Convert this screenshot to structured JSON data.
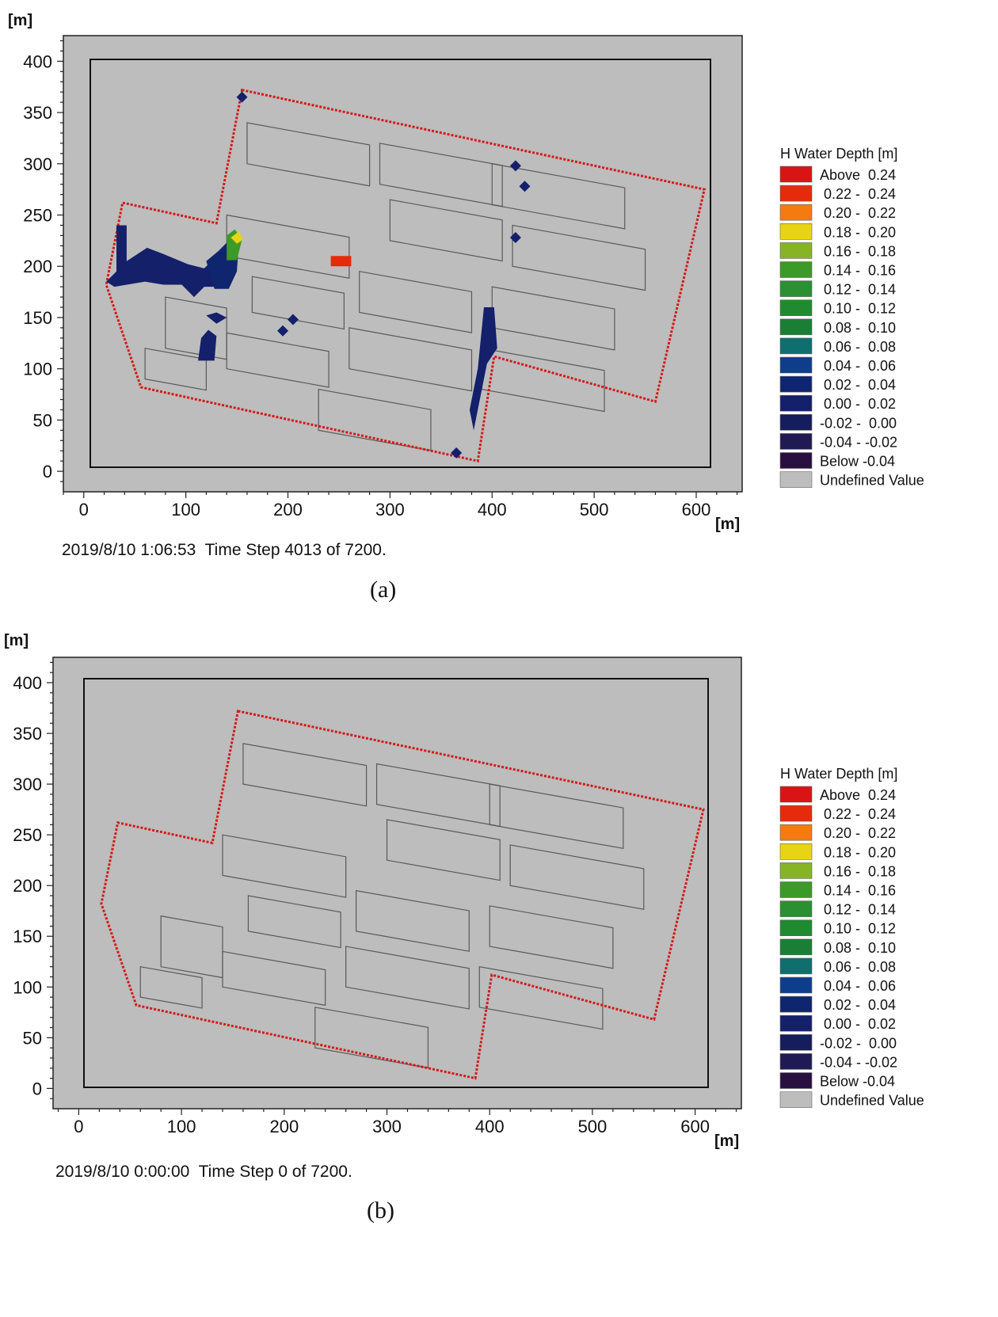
{
  "legend": {
    "title": "H Water Depth [m]",
    "entries": [
      {
        "label": "Above  0.24",
        "color": "#d91414"
      },
      {
        "label": " 0.22 -  0.24",
        "color": "#e62a0c"
      },
      {
        "label": " 0.20 -  0.22",
        "color": "#f57a10"
      },
      {
        "label": " 0.18 -  0.20",
        "color": "#e8d414"
      },
      {
        "label": " 0.16 -  0.18",
        "color": "#86b424"
      },
      {
        "label": " 0.14 -  0.16",
        "color": "#3c9a28"
      },
      {
        "label": " 0.12 -  0.14",
        "color": "#2a9032"
      },
      {
        "label": " 0.10 -  0.12",
        "color": "#1f8a2f"
      },
      {
        "label": " 0.08 -  0.10",
        "color": "#1a7f35"
      },
      {
        "label": " 0.06 -  0.08",
        "color": "#0f6e6e"
      },
      {
        "label": " 0.04 -  0.06",
        "color": "#0e3d8c"
      },
      {
        "label": " 0.02 -  0.04",
        "color": "#102570"
      },
      {
        "label": " 0.00 -  0.02",
        "color": "#14206a"
      },
      {
        "label": "-0.02 -  0.00",
        "color": "#151d5c"
      },
      {
        "label": "-0.04 - -0.02",
        "color": "#201a54"
      },
      {
        "label": "Below -0.04",
        "color": "#2a1040"
      },
      {
        "label": "Undefined Value",
        "color": "#bdbdbd"
      }
    ]
  },
  "chart_data": [
    {
      "type": "heatmap",
      "panel": "a",
      "caption": "(a)",
      "status": "2019/8/10 1:06:53  Time Step 4013 of 7200.",
      "ylabel": "[m]",
      "xlabel": "[m]",
      "x_ticks": [
        0,
        100,
        200,
        300,
        400,
        500,
        600
      ],
      "y_ticks": [
        0,
        50,
        100,
        150,
        200,
        250,
        300,
        350,
        400
      ],
      "xlim": [
        -20,
        645
      ],
      "ylim": [
        -20,
        425
      ],
      "domain_boundary": [
        [
          155,
          372
        ],
        [
          608,
          275
        ],
        [
          560,
          68
        ],
        [
          402,
          112
        ],
        [
          386,
          10
        ],
        [
          56,
          82
        ],
        [
          22,
          182
        ],
        [
          38,
          262
        ],
        [
          130,
          242
        ]
      ],
      "water_regions": [
        {
          "points": [
            [
              32,
              240
            ],
            [
              42,
              240
            ],
            [
              42,
              205
            ],
            [
              62,
              218
            ],
            [
              78,
              212
            ],
            [
              102,
              202
            ],
            [
              118,
              198
            ],
            [
              130,
              210
            ],
            [
              132,
              180
            ],
            [
              118,
              180
            ],
            [
              108,
              170
            ],
            [
              96,
              182
            ],
            [
              78,
              182
            ],
            [
              60,
              185
            ],
            [
              30,
              180
            ],
            [
              22,
              185
            ],
            [
              32,
              195
            ]
          ],
          "color": "#14206a"
        },
        {
          "points": [
            [
              120,
              205
            ],
            [
              132,
              215
            ],
            [
              145,
              228
            ],
            [
              152,
              225
            ],
            [
              150,
              195
            ],
            [
              142,
              178
            ],
            [
              128,
              178
            ]
          ],
          "color": "#102570"
        },
        {
          "points": [
            [
              140,
              230
            ],
            [
              148,
              236
            ],
            [
              155,
              226
            ],
            [
              150,
              206
            ],
            [
              140,
              206
            ]
          ],
          "color": "#3c9a28"
        },
        {
          "points": [
            [
              144,
              228
            ],
            [
              152,
              234
            ],
            [
              156,
              226
            ],
            [
              150,
              222
            ]
          ],
          "color": "#e8d414"
        },
        {
          "points": [
            [
              120,
              152
            ],
            [
              130,
              155
            ],
            [
              140,
              150
            ],
            [
              130,
              144
            ]
          ],
          "color": "#14206a"
        },
        {
          "points": [
            [
              112,
              108
            ],
            [
              128,
              108
            ],
            [
              130,
              132
            ],
            [
              122,
              138
            ],
            [
              115,
              130
            ]
          ],
          "color": "#14206a"
        },
        {
          "points": [
            [
              242,
              210
            ],
            [
              262,
              210
            ],
            [
              262,
              200
            ],
            [
              242,
              200
            ]
          ],
          "color": "#e62a0c"
        },
        {
          "points": [
            [
              392,
              160
            ],
            [
              402,
              160
            ],
            [
              405,
              120
            ],
            [
              395,
              105
            ],
            [
              390,
              80
            ],
            [
              382,
              40
            ],
            [
              378,
              60
            ],
            [
              386,
              100
            ]
          ],
          "color": "#14206a"
        }
      ],
      "water_points": [
        [
          155,
          365
        ],
        [
          195,
          137
        ],
        [
          205,
          148
        ],
        [
          423,
          298
        ],
        [
          432,
          278
        ],
        [
          423,
          228
        ],
        [
          365,
          18
        ]
      ]
    },
    {
      "type": "heatmap",
      "panel": "b",
      "caption": "(b)",
      "status": "2019/8/10 0:00:00  Time Step 0 of 7200.",
      "ylabel": "[m]",
      "xlabel": "[m]",
      "x_ticks": [
        0,
        100,
        200,
        300,
        400,
        500,
        600
      ],
      "y_ticks": [
        0,
        50,
        100,
        150,
        200,
        250,
        300,
        350,
        400
      ],
      "xlim": [
        -25,
        645
      ],
      "ylim": [
        -20,
        425
      ],
      "domain_boundary": [
        [
          155,
          372
        ],
        [
          608,
          275
        ],
        [
          560,
          68
        ],
        [
          402,
          112
        ],
        [
          386,
          10
        ],
        [
          56,
          82
        ],
        [
          22,
          182
        ],
        [
          38,
          262
        ],
        [
          130,
          242
        ]
      ],
      "water_regions": [],
      "water_points": []
    }
  ]
}
